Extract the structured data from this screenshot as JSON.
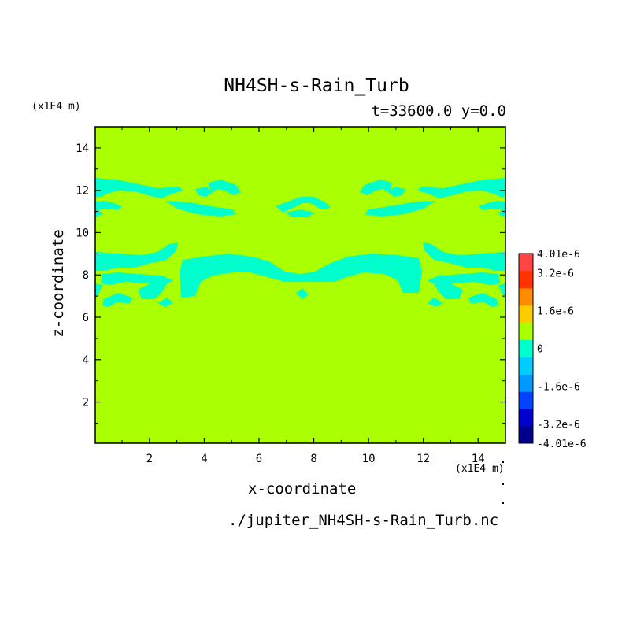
{
  "chart_data": {
    "type": "heatmap",
    "title": "NH4SH-s-Rain_Turb",
    "time_label": "t=33600.0 y=0.0",
    "xlabel": "x-coordinate",
    "ylabel": "z-coordinate",
    "x_unit": "(x1E4 m)",
    "z_unit": "(x1E4 m)",
    "source_file": "./jupiter_NH4SH-s-Rain_Turb.nc",
    "xlim": [
      0.02,
      15
    ],
    "ylim": [
      0.05,
      15
    ],
    "x_ticks": [
      2,
      4,
      6,
      8,
      10,
      12,
      14
    ],
    "y_ticks": [
      2,
      4,
      6,
      8,
      10,
      12,
      14
    ],
    "background_level_color": "#aaff00",
    "anomaly_color": "#00ffcc",
    "colorbar": {
      "levels": [
        {
          "color": "#00008b"
        },
        {
          "color": "#0000cc"
        },
        {
          "color": "#0044ff"
        },
        {
          "color": "#0099ff"
        },
        {
          "color": "#00ccff"
        },
        {
          "color": "#00ffcc"
        },
        {
          "color": "#aaff00"
        },
        {
          "color": "#ffcc00"
        },
        {
          "color": "#ff8c00"
        },
        {
          "color": "#ff3300"
        },
        {
          "color": "#ff4444"
        }
      ],
      "labels": [
        {
          "text": "4.01e-6",
          "value": 4.01e-06
        },
        {
          "text": "3.2e-6",
          "value": 3.2e-06
        },
        {
          "text": "1.6e-6",
          "value": 1.6e-06
        },
        {
          "text": "0",
          "value": 0
        },
        {
          "text": "-1.6e-6",
          "value": -1.6e-06
        },
        {
          "text": "-3.2e-6",
          "value": -3.2e-06
        },
        {
          "text": "-4.01e-6",
          "value": -4.01e-06
        }
      ]
    }
  }
}
